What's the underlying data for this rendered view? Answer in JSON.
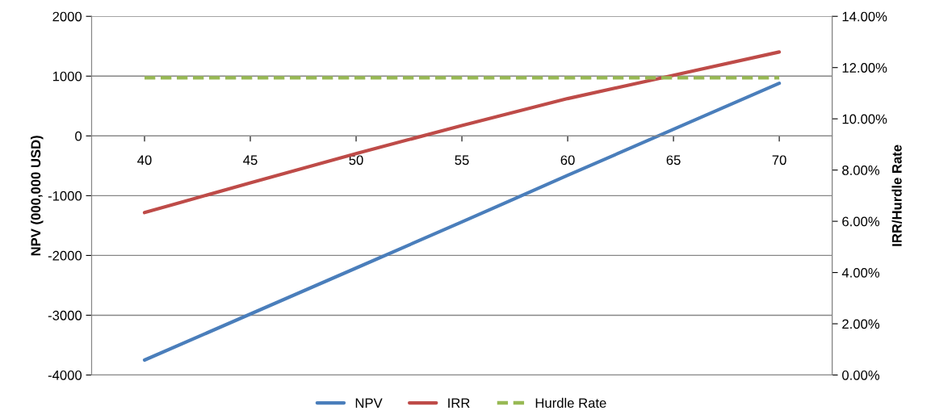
{
  "chart_data": {
    "type": "line",
    "xlabel": null,
    "ylabel": "NPV (000,000 USD)",
    "y2label": "IRR/Hurdle Rate",
    "x": [
      40,
      45,
      50,
      55,
      60,
      65,
      70
    ],
    "xlim": [
      37.5,
      72.5
    ],
    "xticks": [
      40,
      45,
      50,
      55,
      60,
      65,
      70
    ],
    "ylim": [
      -4000,
      2000
    ],
    "yticks": [
      -4000,
      -3000,
      -2000,
      -1000,
      0,
      1000,
      2000
    ],
    "y2lim": [
      0,
      14
    ],
    "y2ticks": [
      {
        "value": 0,
        "label": "0.00%"
      },
      {
        "value": 2,
        "label": "2.00%"
      },
      {
        "value": 4,
        "label": "4.00%"
      },
      {
        "value": 6,
        "label": "6.00%"
      },
      {
        "value": 8,
        "label": "8.00%"
      },
      {
        "value": 10,
        "label": "10.00%"
      },
      {
        "value": 12,
        "label": "12.00%"
      },
      {
        "value": 14,
        "label": "14.00%"
      }
    ],
    "series": [
      {
        "name": "NPV",
        "color": "#4a7ebb",
        "values": [
          -3750,
          -2980,
          -2210,
          -1440,
          -660,
          110,
          880
        ]
      },
      {
        "name": "IRR",
        "color": "#be4b48",
        "axis": "y2",
        "values": [
          6.34,
          7.5,
          8.64,
          9.74,
          10.79,
          11.7,
          12.61
        ]
      },
      {
        "name": "Hurdle Rate",
        "color": "#98b954",
        "axis": "y2",
        "line_style": "dashed",
        "values": [
          11.6,
          11.6,
          11.6,
          11.6,
          11.6,
          11.6,
          11.6
        ]
      }
    ],
    "grid": "y",
    "legend": "bottom",
    "marker": "none"
  }
}
